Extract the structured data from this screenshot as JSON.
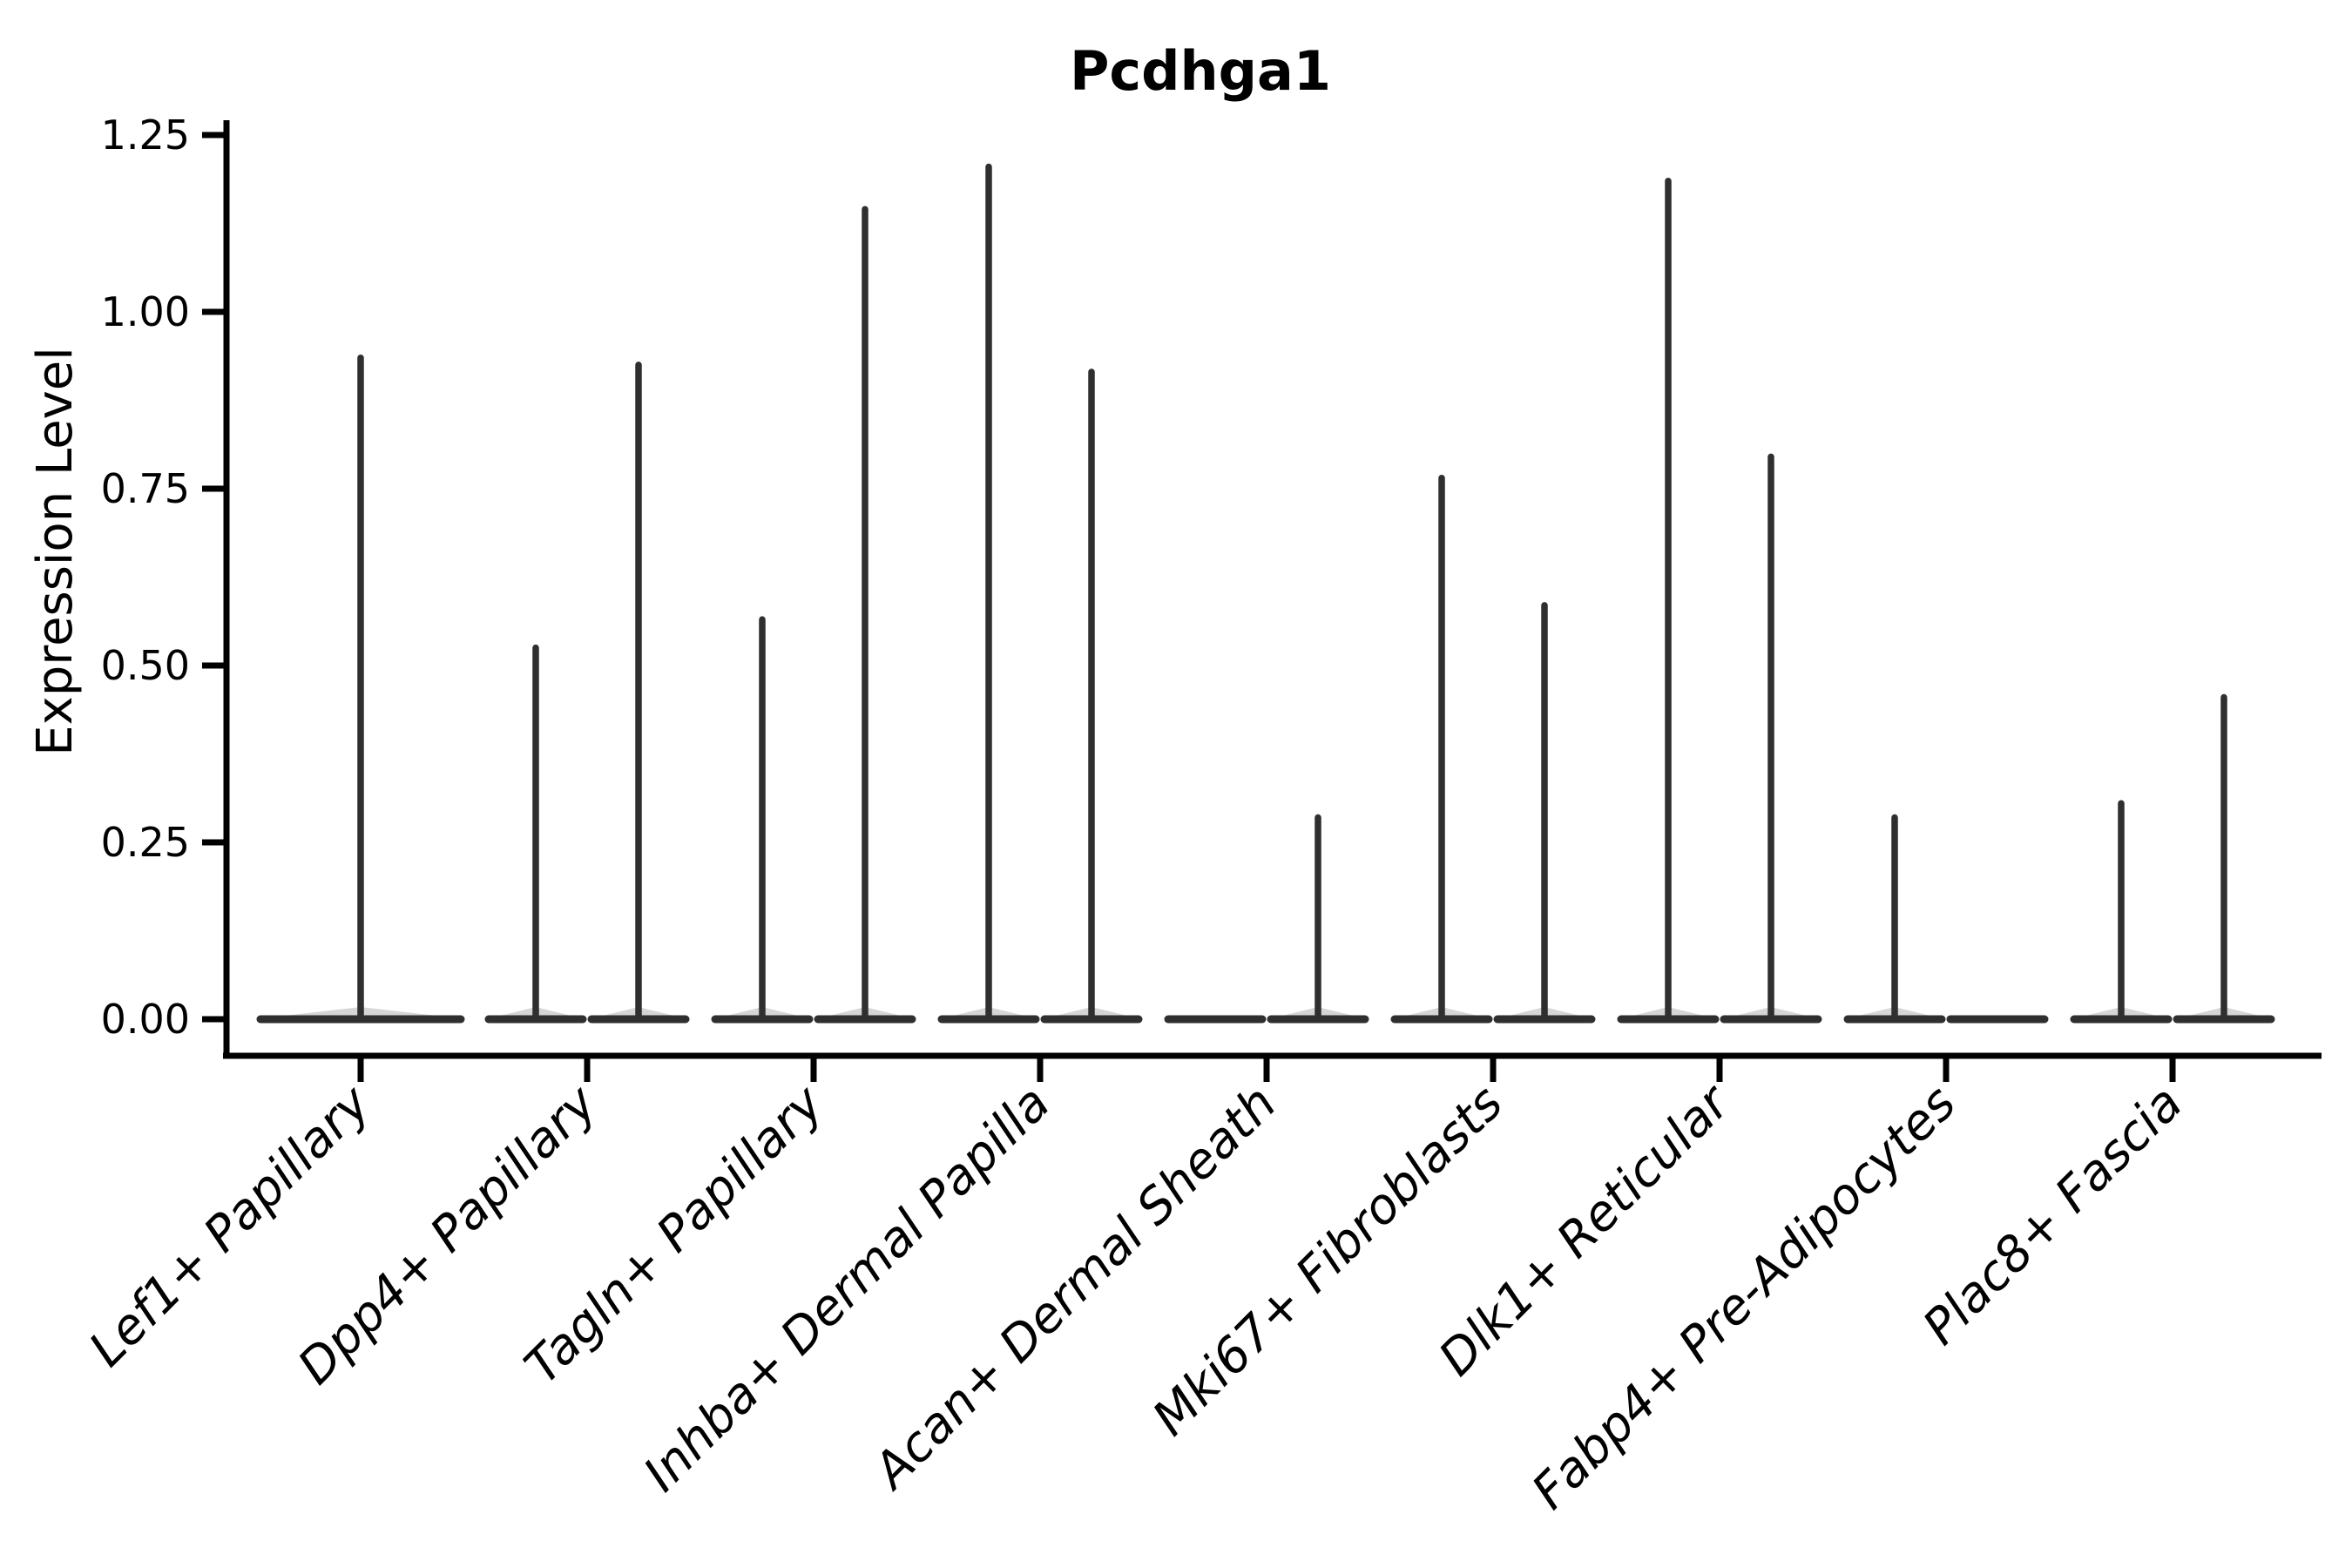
{
  "title": "Pcdhga1",
  "y_axis": {
    "label": "Expression Level",
    "tick_labels": [
      "1.25",
      "1.00",
      "0.75",
      "0.50",
      "0.25",
      "0.00"
    ]
  },
  "chart_data": {
    "type": "violin",
    "title": "Pcdhga1",
    "xlabel": "",
    "ylabel": "Expression Level",
    "ylim": [
      0,
      1.25
    ],
    "yticks": [
      1.25,
      1.0,
      0.75,
      0.5,
      0.25,
      0.0
    ],
    "ytick_labels": [
      "1.25",
      "1.00",
      "0.75",
      "0.50",
      "0.25",
      "0.00"
    ],
    "grid": false,
    "legend": "none",
    "background": "#ffffff",
    "categories": [
      "Lef1+ Papillary",
      "Dpp4+ Papillary",
      "Tagln+ Papillary",
      "Inhba+ Dermal Papilla",
      "Acan+ Dermal Sheath",
      "Mki67+ Fibroblasts",
      "Dlk1+ Reticular",
      "Fabp4+ Pre-Adipocytes",
      "Plac8+ Fascia"
    ],
    "series": [
      {
        "category": "Lef1+ Papillary",
        "violins": [
          {
            "position": "center",
            "max": 0.94
          }
        ]
      },
      {
        "category": "Dpp4+ Papillary",
        "violins": [
          {
            "position": "left",
            "max": 0.53
          },
          {
            "position": "right",
            "max": 0.93
          }
        ]
      },
      {
        "category": "Tagln+ Papillary",
        "violins": [
          {
            "position": "left",
            "max": 0.57
          },
          {
            "position": "right",
            "max": 1.15
          }
        ]
      },
      {
        "category": "Inhba+ Dermal Papilla",
        "violins": [
          {
            "position": "left",
            "max": 1.21
          },
          {
            "position": "right",
            "max": 0.92
          }
        ]
      },
      {
        "category": "Acan+ Dermal Sheath",
        "violins": [
          {
            "position": "left",
            "max": 0.0
          },
          {
            "position": "right",
            "max": 0.29
          }
        ]
      },
      {
        "category": "Mki67+ Fibroblasts",
        "violins": [
          {
            "position": "left",
            "max": 0.77
          },
          {
            "position": "right",
            "max": 0.59
          }
        ]
      },
      {
        "category": "Dlk1+ Reticular",
        "violins": [
          {
            "position": "left",
            "max": 1.19
          },
          {
            "position": "right",
            "max": 0.8
          }
        ]
      },
      {
        "category": "Fabp4+ Pre-Adipocytes",
        "violins": [
          {
            "position": "left",
            "max": 0.29
          },
          {
            "position": "right",
            "max": 0.0
          }
        ]
      },
      {
        "category": "Plac8+ Fascia",
        "violins": [
          {
            "position": "left",
            "max": 0.31
          },
          {
            "position": "right",
            "max": 0.46
          }
        ]
      }
    ],
    "colors": {
      "violin": "#2f2f2f",
      "axis": "#000000",
      "text": "#000000",
      "background": "#ffffff"
    }
  }
}
